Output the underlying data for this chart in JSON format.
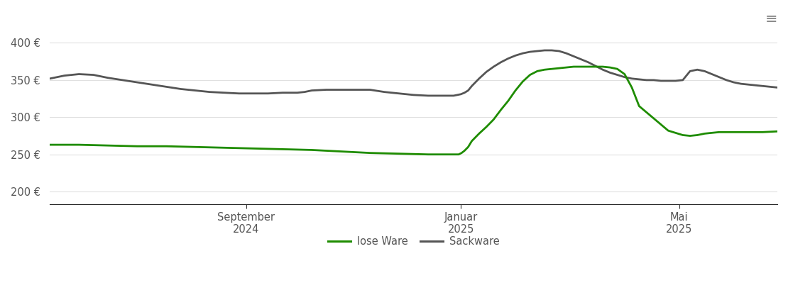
{
  "yticks": [
    200,
    250,
    300,
    350,
    400
  ],
  "ylim": [
    183,
    415
  ],
  "xlim": [
    0,
    1
  ],
  "xtick_labels": [
    "September\n2024",
    "Januar\n2025",
    "Mai\n2025"
  ],
  "xtick_positions": [
    0.27,
    0.565,
    0.865
  ],
  "background_color": "#ffffff",
  "grid_color": "#e0e0e0",
  "lose_ware_color": "#1e8c00",
  "sackware_color": "#555555",
  "legend_labels": [
    "lose Ware",
    "Sackware"
  ],
  "lose_ware": {
    "x": [
      0.0,
      0.04,
      0.08,
      0.12,
      0.16,
      0.2,
      0.24,
      0.28,
      0.32,
      0.36,
      0.4,
      0.44,
      0.48,
      0.52,
      0.545,
      0.555,
      0.56,
      0.562,
      0.564,
      0.566,
      0.57,
      0.575,
      0.58,
      0.59,
      0.6,
      0.61,
      0.62,
      0.63,
      0.64,
      0.65,
      0.66,
      0.67,
      0.68,
      0.69,
      0.7,
      0.71,
      0.72,
      0.73,
      0.74,
      0.75,
      0.76,
      0.77,
      0.78,
      0.79,
      0.8,
      0.81,
      0.85,
      0.87,
      0.88,
      0.89,
      0.9,
      0.91,
      0.92,
      0.94,
      0.96,
      0.98,
      1.0
    ],
    "y": [
      263,
      263,
      262,
      261,
      261,
      260,
      259,
      258,
      257,
      256,
      254,
      252,
      251,
      250,
      250,
      250,
      250,
      250,
      251,
      252,
      255,
      260,
      268,
      278,
      287,
      297,
      310,
      322,
      336,
      348,
      357,
      362,
      364,
      365,
      366,
      367,
      368,
      368,
      368,
      368,
      368,
      367,
      365,
      358,
      340,
      315,
      282,
      276,
      275,
      276,
      278,
      279,
      280,
      280,
      280,
      280,
      281
    ]
  },
  "sackware": {
    "x": [
      0.0,
      0.02,
      0.04,
      0.06,
      0.08,
      0.1,
      0.12,
      0.14,
      0.16,
      0.18,
      0.2,
      0.22,
      0.24,
      0.26,
      0.28,
      0.3,
      0.32,
      0.33,
      0.34,
      0.35,
      0.36,
      0.38,
      0.4,
      0.42,
      0.44,
      0.46,
      0.48,
      0.5,
      0.52,
      0.54,
      0.545,
      0.55,
      0.555,
      0.56,
      0.565,
      0.57,
      0.575,
      0.58,
      0.59,
      0.6,
      0.61,
      0.62,
      0.63,
      0.64,
      0.65,
      0.66,
      0.67,
      0.68,
      0.69,
      0.7,
      0.71,
      0.72,
      0.73,
      0.74,
      0.75,
      0.76,
      0.77,
      0.78,
      0.79,
      0.8,
      0.81,
      0.82,
      0.83,
      0.84,
      0.85,
      0.86,
      0.87,
      0.88,
      0.89,
      0.9,
      0.91,
      0.92,
      0.93,
      0.94,
      0.95,
      0.96,
      0.97,
      0.98,
      1.0
    ],
    "y": [
      352,
      356,
      358,
      357,
      353,
      350,
      347,
      344,
      341,
      338,
      336,
      334,
      333,
      332,
      332,
      332,
      333,
      333,
      333,
      334,
      336,
      337,
      337,
      337,
      337,
      334,
      332,
      330,
      329,
      329,
      329,
      329,
      329,
      330,
      331,
      333,
      336,
      342,
      352,
      361,
      368,
      374,
      379,
      383,
      386,
      388,
      389,
      390,
      390,
      389,
      386,
      382,
      378,
      374,
      369,
      364,
      360,
      357,
      354,
      352,
      351,
      350,
      350,
      349,
      349,
      349,
      350,
      362,
      364,
      362,
      358,
      354,
      350,
      347,
      345,
      344,
      343,
      342,
      340
    ]
  }
}
